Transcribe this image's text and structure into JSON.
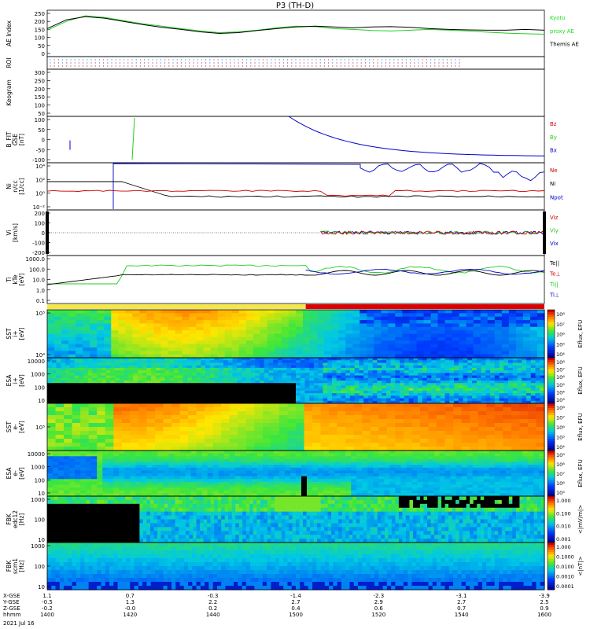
{
  "chart_data": {
    "type": "line",
    "title": "P3 (TH-D)",
    "date": "2021 Jul 16",
    "x_ticks": [
      "1400",
      "1420",
      "1440",
      "1500",
      "1520",
      "1540",
      "1600"
    ],
    "ephemeris": {
      "labels": [
        "X-GSE",
        "Y-GSE",
        "Z-GSE",
        "hhmm"
      ],
      "rows": [
        [
          "1.1",
          "0.7",
          "-0.3",
          "-1.4",
          "-2.3",
          "-3.1",
          "-3.9"
        ],
        [
          "-0.5",
          "1.3",
          "2.2",
          "2.7",
          "2.9",
          "2.7",
          "2.5"
        ],
        [
          "-0.2",
          "-0.0",
          "0.2",
          "0.4",
          "0.6",
          "0.7",
          "0.9"
        ]
      ]
    },
    "panels": [
      {
        "id": "ae",
        "ylabel": "AE Index",
        "yticks": [
          "250",
          "200",
          "150",
          "100",
          "50",
          "0"
        ],
        "legend": [
          {
            "text": "Kyoto",
            "color": "#22dd22"
          },
          {
            "text": "proxy AE",
            "color": "#22dd22"
          },
          {
            "text": "Themis AE",
            "color": "#000000"
          }
        ],
        "series": [
          {
            "name": "Kyoto proxy AE",
            "color": "#22cc22",
            "values": [
              150,
              205,
              240,
              230,
              210,
              190,
              175,
              160,
              145,
              135,
              140,
              150,
              165,
              175,
              172,
              160,
              155,
              148,
              145,
              150,
              155,
              150,
              145,
              138,
              132,
              128,
              125
            ]
          },
          {
            "name": "Themis AE",
            "color": "#000000",
            "values": [
              160,
              215,
              235,
              225,
              205,
              185,
              168,
              155,
              140,
              130,
              135,
              148,
              160,
              170,
              175,
              170,
              165,
              170,
              172,
              168,
              160,
              155,
              152,
              150,
              150,
              155,
              150
            ]
          }
        ]
      },
      {
        "id": "roi",
        "ylabel": "ROI"
      },
      {
        "id": "keogram",
        "ylabel": "Keogram",
        "yticks": [
          "300",
          "250",
          "200",
          "150",
          "100",
          "50"
        ]
      },
      {
        "id": "bfit",
        "ylabel": "B_FIT\nGSE\n[nT]",
        "yticks": [
          "100",
          "50",
          "0",
          "-50",
          "-100"
        ],
        "legend": [
          {
            "text": "Bz",
            "color": "#cc0000"
          },
          {
            "text": "By",
            "color": "#22cc22"
          },
          {
            "text": "Bx",
            "color": "#0000cc"
          }
        ]
      },
      {
        "id": "ni",
        "ylabel": "Ni\nn/cc\n[1/cc]",
        "yticks": [
          "10⁴",
          "10²",
          "10⁰",
          "10⁻²"
        ],
        "legend": [
          {
            "text": "Ne",
            "color": "#cc0000"
          },
          {
            "text": "Ni",
            "color": "#000000"
          },
          {
            "text": "Npot",
            "color": "#0000cc"
          }
        ]
      },
      {
        "id": "vi",
        "ylabel": "Vi\n[km/s]",
        "yticks": [
          "200",
          "100",
          "0",
          "-100",
          "-200"
        ],
        "legend": [
          {
            "text": "Viz",
            "color": "#cc0000"
          },
          {
            "text": "Viy",
            "color": "#22cc22"
          },
          {
            "text": "Vix",
            "color": "#0000cc"
          }
        ]
      },
      {
        "id": "ti",
        "ylabel": "Ti\nkTe\n[eV]",
        "yticks": [
          "1000.0",
          "100.0",
          "10.0",
          "1.0",
          "0.1"
        ],
        "legend": [
          {
            "text": "Te||",
            "color": "#000000"
          },
          {
            "text": "Te⊥",
            "color": "#cc0000"
          },
          {
            "text": "Ti||",
            "color": "#22cc22"
          },
          {
            "text": "Ti⊥",
            "color": "#0000cc"
          }
        ]
      },
      {
        "id": "sst_i",
        "ylabel": "SST\ni+\n[eV]",
        "yticks": [
          "10⁵",
          "10⁴"
        ],
        "cbar_ticks": [
          "10⁸",
          "10⁷",
          "10⁶",
          "10⁵",
          "10⁴"
        ],
        "cbar_label": "Eflux, EFU"
      },
      {
        "id": "esa_i",
        "ylabel": "ESA\ni+\n[eV]",
        "yticks": [
          "10000",
          "1000",
          "100",
          "10"
        ],
        "cbar_ticks": [
          "10⁸",
          "10⁷",
          "10⁶",
          "10⁵",
          "10⁴",
          "10³"
        ],
        "cbar_label": "Eflux, EFU"
      },
      {
        "id": "sst_e",
        "ylabel": "SST\ne-\n[eV]",
        "yticks": [
          "10⁵"
        ],
        "cbar_ticks": [
          "10⁸",
          "10⁷",
          "10⁶",
          "10⁵",
          "10⁴"
        ],
        "cbar_label": "Eflux, EFU"
      },
      {
        "id": "esa_e",
        "ylabel": "ESA\ne-\n[eV]",
        "yticks": [
          "10000",
          "1000",
          "100",
          "10"
        ],
        "cbar_ticks": [
          "10⁹",
          "10⁸",
          "10⁷",
          "10⁶",
          "10⁵"
        ],
        "cbar_label": "Eflux, EFU"
      },
      {
        "id": "fbk_e",
        "ylabel": "FBK\nedc12\n[Hz]",
        "yticks": [
          "1000",
          "100",
          "10"
        ],
        "cbar_ticks": [
          "1.000",
          "0.100",
          "0.010",
          "0.001"
        ],
        "cbar_label": "<|mV/m|>"
      },
      {
        "id": "fbk_b",
        "ylabel": "FBK\nscm1\n[Hz]",
        "yticks": [
          "1000",
          "100",
          "10"
        ],
        "cbar_ticks": [
          "1.000",
          "0.1000",
          "0.0100",
          "0.0010",
          "0.0001"
        ],
        "cbar_label": "<|nT|>"
      }
    ]
  }
}
